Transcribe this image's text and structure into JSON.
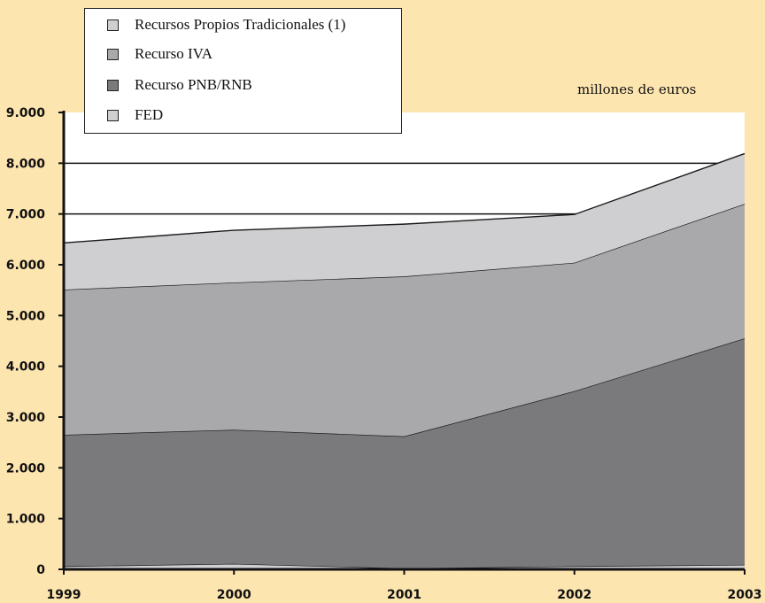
{
  "unit_label": "millones de euros",
  "legend": [
    {
      "label": "Recursos Propios Tradicionales (1)",
      "color": "#cfcfd2"
    },
    {
      "label": "Recurso IVA",
      "color": "#a9a9ab"
    },
    {
      "label": "Recurso PNB/RNB",
      "color": "#7a7a7c"
    },
    {
      "label": "FED",
      "color": "#cfcfd2"
    }
  ],
  "chart_data": {
    "type": "area",
    "stacked": true,
    "title": "",
    "xlabel": "",
    "ylabel": "",
    "unit": "millones de euros",
    "categories": [
      "1999",
      "2000",
      "2001",
      "2002",
      "2003"
    ],
    "ylim": [
      0,
      9000
    ],
    "yticks": [
      "0",
      "1.000",
      "2.000",
      "3.000",
      "4.000",
      "5.000",
      "6.000",
      "7.000",
      "8.000",
      "9.000"
    ],
    "ytick_values": [
      0,
      1000,
      2000,
      3000,
      4000,
      5000,
      6000,
      7000,
      8000,
      9000
    ],
    "gridlines": [
      7000,
      8000
    ],
    "legend_position": "top-left",
    "series": [
      {
        "name": "FED",
        "color": "#cfcfd2",
        "values": [
          60,
          110,
          20,
          60,
          90
        ]
      },
      {
        "name": "Recurso PNB/RNB",
        "color": "#7a7a7c",
        "values": [
          2590,
          2640,
          2600,
          3450,
          4460
        ]
      },
      {
        "name": "Recurso IVA",
        "color": "#a9a9ab",
        "values": [
          2860,
          2900,
          3150,
          2530,
          2650
        ]
      },
      {
        "name": "Recursos Propios Tradicionales (1)",
        "color": "#cfcfd2",
        "values": [
          920,
          1030,
          1030,
          950,
          990
        ]
      }
    ]
  }
}
